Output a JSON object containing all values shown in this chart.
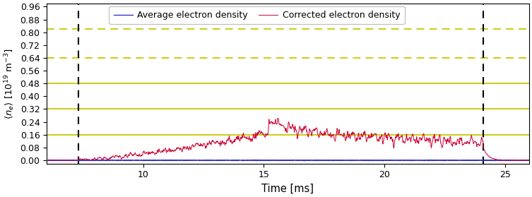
{
  "title": "",
  "xlabel": "Time [ms]",
  "ylabel": "$\\langle n_e \\rangle$ [$10^{19}$ m$^{-3}$]",
  "xlim": [
    6.0,
    26.0
  ],
  "ylim": [
    -0.02,
    0.98
  ],
  "yticks": [
    0.0,
    0.08,
    0.16,
    0.24,
    0.32,
    0.4,
    0.48,
    0.56,
    0.64,
    0.72,
    0.8,
    0.88,
    0.96
  ],
  "xticks": [
    10,
    15,
    20,
    25
  ],
  "vlines": [
    7.3,
    24.1
  ],
  "hlines_solid": [
    0.16,
    0.32,
    0.48
  ],
  "hlines_dashed": [
    0.64,
    0.82
  ],
  "hline_color": "#c8c800",
  "vline_color": "#000000",
  "legend_labels": [
    "Average electron density",
    "Corrected electron density"
  ],
  "legend_colors": [
    "#3333cc",
    "#cc0033"
  ],
  "figsize": [
    7.53,
    2.79
  ],
  "dpi": 100
}
